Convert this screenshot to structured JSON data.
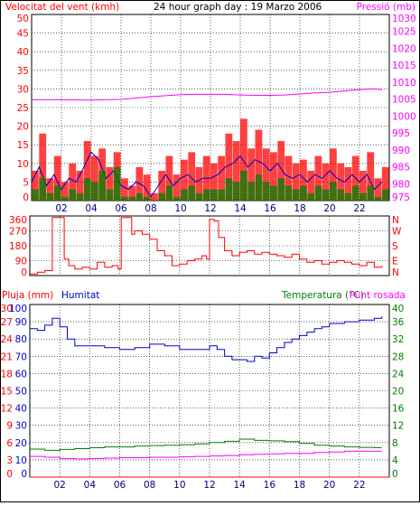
{
  "chart_data": [
    {
      "type": "line",
      "panel": "wind-pressure",
      "title": "24 hour graph day : 19 Marzo 2006",
      "ylabel_left": "Velocitat del vent (kmh)",
      "ylabel_right": "Pressió (mb)",
      "ylim_left": [
        0,
        50
      ],
      "ylim_right": [
        975,
        1030
      ],
      "yticks_left": [
        "0",
        "5",
        "10",
        "15",
        "20",
        "25",
        "30",
        "35",
        "40",
        "45",
        "50"
      ],
      "yticks_right": [
        "975",
        "980",
        "985",
        "990",
        "995",
        "1000",
        "1005",
        "1010",
        "1015",
        "1020",
        "1025",
        "1030"
      ],
      "xlim": [
        0,
        24
      ],
      "xticks": [
        "02",
        "04",
        "06",
        "08",
        "10",
        "12",
        "14",
        "16",
        "18",
        "20",
        "22"
      ],
      "grid": true,
      "colors": {
        "gust": "#ff0000",
        "average": "#0000cc",
        "low": "#008000",
        "pressure": "#ff00ff"
      },
      "series": [
        {
          "role": "pressure",
          "axis": "right",
          "x": [
            0,
            2,
            4,
            6,
            7,
            8,
            9,
            10,
            11,
            12,
            13,
            14,
            15,
            16,
            17,
            18,
            19,
            20,
            21,
            22,
            23,
            23.5
          ],
          "values": [
            1004.8,
            1004.8,
            1004.7,
            1004.9,
            1005.3,
            1005.7,
            1006.0,
            1006.3,
            1006.4,
            1006.4,
            1006.4,
            1006.2,
            1006.1,
            1006.1,
            1006.2,
            1006.5,
            1006.8,
            1007.0,
            1007.4,
            1007.8,
            1008.0,
            1007.8
          ]
        },
        {
          "role": "gust",
          "axis": "left",
          "x": [
            0,
            0.5,
            1,
            1.5,
            2,
            2.5,
            3,
            3.5,
            4,
            4.5,
            5,
            5.5,
            6,
            6.5,
            7,
            7.5,
            8,
            8.5,
            9,
            9.5,
            10,
            10.5,
            11,
            11.5,
            12,
            12.5,
            13,
            13.5,
            14,
            14.5,
            15,
            15.5,
            16,
            16.5,
            17,
            17.5,
            18,
            18.5,
            19,
            19.5,
            20,
            20.5,
            21,
            21.5,
            22,
            22.5,
            23,
            23.5
          ],
          "values": [
            8,
            18,
            6,
            12,
            5,
            10,
            8,
            16,
            12,
            14,
            9,
            13,
            6,
            4,
            9,
            7,
            2,
            8,
            12,
            7,
            11,
            13,
            9,
            12,
            10,
            12,
            18,
            16,
            22,
            14,
            19,
            14,
            13,
            16,
            12,
            10,
            11,
            8,
            12,
            10,
            14,
            10,
            9,
            12,
            8,
            13,
            6,
            9
          ]
        },
        {
          "role": "average",
          "axis": "left",
          "x": [
            0,
            0.5,
            1,
            1.5,
            2,
            2.5,
            3,
            3.5,
            4,
            4.5,
            5,
            5.5,
            6,
            6.5,
            7,
            7.5,
            8,
            8.5,
            9,
            9.5,
            10,
            10.5,
            11,
            11.5,
            12,
            12.5,
            13,
            13.5,
            14,
            14.5,
            15,
            15.5,
            16,
            16.5,
            17,
            17.5,
            18,
            18.5,
            19,
            19.5,
            20,
            20.5,
            21,
            21.5,
            22,
            22.5,
            23,
            23.5
          ],
          "values": [
            5,
            9,
            4,
            7,
            3,
            6,
            5,
            9,
            13,
            11,
            6,
            8,
            4,
            3,
            5,
            4,
            1,
            4,
            7,
            4,
            6,
            7,
            5,
            6,
            6,
            7,
            9,
            10,
            12,
            9,
            11,
            10,
            8,
            10,
            7,
            6,
            7,
            5,
            7,
            6,
            8,
            6,
            5,
            7,
            5,
            7,
            3,
            5
          ]
        },
        {
          "role": "low",
          "axis": "left",
          "x": [
            0,
            0.5,
            1,
            1.5,
            2,
            2.5,
            3,
            3.5,
            4,
            4.5,
            5,
            5.5,
            6,
            6.5,
            7,
            7.5,
            8,
            8.5,
            9,
            9.5,
            10,
            10.5,
            11,
            11.5,
            12,
            12.5,
            13,
            13.5,
            14,
            14.5,
            15,
            15.5,
            16,
            16.5,
            17,
            17.5,
            18,
            18.5,
            19,
            19.5,
            20,
            20.5,
            21,
            21.5,
            22,
            22.5,
            23,
            23.5
          ],
          "values": [
            3,
            6,
            2,
            4,
            1,
            3,
            2,
            6,
            5,
            8,
            3,
            9,
            1,
            1,
            2,
            1,
            0,
            2,
            4,
            1,
            3,
            4,
            2,
            3,
            3,
            3,
            6,
            5,
            8,
            5,
            7,
            5,
            4,
            6,
            4,
            3,
            4,
            2,
            4,
            3,
            5,
            3,
            2,
            4,
            2,
            4,
            1,
            3
          ]
        }
      ]
    },
    {
      "type": "line",
      "panel": "wind-direction",
      "ylim": [
        0,
        360
      ],
      "yticks_left": [
        "0",
        "90",
        "180",
        "270",
        "360"
      ],
      "yticks_right": [
        "N",
        "E",
        "S",
        "W",
        "N"
      ],
      "xlim": [
        0,
        24
      ],
      "grid": true,
      "colors": {
        "direction": "#ff0000"
      },
      "series": [
        {
          "role": "direction",
          "x": [
            0,
            0.5,
            1,
            1.5,
            1.8,
            2,
            2.3,
            2.6,
            3,
            3.5,
            4,
            4.5,
            5,
            5.5,
            5.9,
            6.1,
            6.5,
            6.8,
            7,
            7.5,
            8,
            8.5,
            9,
            9.5,
            10,
            10.5,
            11,
            11.5,
            11.8,
            12,
            12.3,
            12.6,
            13,
            13.5,
            14,
            14.5,
            15,
            15.5,
            16,
            16.5,
            17,
            17.5,
            18,
            18.5,
            19,
            19.5,
            20,
            20.5,
            21,
            21.5,
            22,
            22.5,
            23,
            23.5
          ],
          "values": [
            10,
            20,
            30,
            350,
            350,
            350,
            100,
            60,
            40,
            50,
            40,
            80,
            50,
            60,
            40,
            350,
            350,
            250,
            270,
            250,
            220,
            150,
            120,
            60,
            70,
            90,
            100,
            120,
            100,
            340,
            330,
            230,
            150,
            120,
            140,
            150,
            130,
            140,
            130,
            120,
            110,
            130,
            100,
            80,
            90,
            70,
            80,
            90,
            80,
            70,
            60,
            80,
            50,
            60
          ]
        }
      ]
    },
    {
      "type": "line",
      "panel": "rain-humidity-temperature",
      "ylabel_left": "Pluja (mm)",
      "ylabel_left2": "Humitat",
      "ylabel_right": "Temperatura (°C)",
      "ylabel_right2": "Punt rosada",
      "ylim_rain": [
        0,
        30
      ],
      "ylim_humidity": [
        0,
        100
      ],
      "ylim_temperature": [
        0,
        40
      ],
      "yticks_rain": [
        "0",
        "3",
        "6",
        "9",
        "12",
        "15",
        "18",
        "21",
        "24",
        "27",
        "30"
      ],
      "yticks_humidity": [
        "0",
        "10",
        "20",
        "30",
        "40",
        "50",
        "60",
        "70",
        "80",
        "90",
        "100"
      ],
      "yticks_temperature": [
        "0",
        "4",
        "8",
        "12",
        "16",
        "20",
        "24",
        "28",
        "32",
        "36",
        "40"
      ],
      "xlim": [
        0,
        24
      ],
      "xticks": [
        "02",
        "04",
        "06",
        "08",
        "10",
        "12",
        "14",
        "16",
        "18",
        "20",
        "22"
      ],
      "grid": true,
      "colors": {
        "rain": "#ff0000",
        "humidity": "#0000cc",
        "temperature": "#008000",
        "dewpoint": "#ff00ff"
      },
      "series": [
        {
          "role": "rain",
          "axis": "rain",
          "x": [
            0,
            24
          ],
          "values": [
            0,
            0
          ]
        },
        {
          "role": "humidity",
          "axis": "humidity",
          "x": [
            0,
            0.5,
            1,
            1.5,
            2,
            2.5,
            3,
            4,
            5,
            6,
            7,
            8,
            9,
            10,
            11,
            12,
            12.5,
            13,
            13.5,
            14,
            14.5,
            15,
            15.5,
            16,
            16.5,
            17,
            17.5,
            18,
            18.5,
            19,
            19.5,
            20,
            21,
            22,
            23,
            23.5
          ],
          "values": [
            86,
            85,
            88,
            92,
            87,
            80,
            76,
            76,
            75,
            74,
            75,
            77,
            76,
            74,
            74,
            76,
            74,
            70,
            68,
            68,
            67,
            70,
            69,
            72,
            75,
            78,
            80,
            82,
            84,
            86,
            87,
            89,
            90,
            91,
            92,
            93
          ]
        },
        {
          "role": "temperature",
          "axis": "temperature",
          "x": [
            0,
            1,
            2,
            3,
            4,
            5,
            6,
            7,
            8,
            9,
            10,
            11,
            12,
            13,
            14,
            15,
            16,
            17,
            18,
            19,
            20,
            21,
            22,
            23,
            23.5
          ],
          "values": [
            6.5,
            6.2,
            6.4,
            6.6,
            6.8,
            7.0,
            7.0,
            7.2,
            7.3,
            7.4,
            7.5,
            7.7,
            8.0,
            8.3,
            8.8,
            8.5,
            8.4,
            8.2,
            7.8,
            7.4,
            7.2,
            7.0,
            6.9,
            6.8,
            6.8
          ]
        },
        {
          "role": "dewpoint",
          "axis": "temperature",
          "x": [
            0,
            1,
            2,
            3,
            4,
            5,
            6,
            7,
            8,
            9,
            10,
            11,
            12,
            13,
            14,
            15,
            16,
            17,
            18,
            19,
            20,
            21,
            22,
            23,
            23.5
          ],
          "values": [
            4.8,
            4.6,
            4.3,
            4.2,
            4.3,
            4.4,
            4.5,
            4.5,
            4.6,
            4.6,
            4.7,
            4.8,
            4.9,
            5.0,
            5.2,
            5.3,
            5.4,
            5.5,
            5.5,
            5.7,
            5.8,
            6.0,
            6.0,
            6.0,
            6.0
          ]
        }
      ]
    }
  ]
}
